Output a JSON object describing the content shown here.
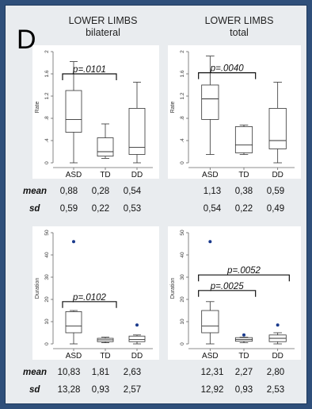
{
  "panel_letter": "D",
  "columns": [
    {
      "title1": "LOWER LIMBS",
      "title2": "bilateral"
    },
    {
      "title1": "LOWER LIMBS",
      "title2": "total"
    }
  ],
  "stat_labels": {
    "mean": "mean",
    "sd": "sd"
  },
  "stats": {
    "bilateral_rate": {
      "mean": [
        "0,88",
        "0,28",
        "0,54"
      ],
      "sd": [
        "0,59",
        "0,22",
        "0,53"
      ]
    },
    "total_rate": {
      "mean": [
        "1,13",
        "0,38",
        "0,59"
      ],
      "sd": [
        "0,54",
        "0,22",
        "0,49"
      ]
    },
    "bilateral_duration": {
      "mean": [
        "10,83",
        "1,81",
        "2,63"
      ],
      "sd": [
        "13,28",
        "0,93",
        "2,57"
      ]
    },
    "total_duration": {
      "mean": [
        "12,31",
        "2,27",
        "2,80"
      ],
      "sd": [
        "12,92",
        "0,93",
        "2,53"
      ]
    }
  },
  "chart_data": [
    {
      "type": "box",
      "id": "bilateral_rate",
      "ylabel": "Rate",
      "ylim": [
        0,
        2
      ],
      "yticks": [
        "0",
        ".4",
        ".8",
        "1.2",
        "1.6",
        "2"
      ],
      "categories": [
        "ASD",
        "TD",
        "DD"
      ],
      "boxes": [
        {
          "min": 0.0,
          "q1": 0.55,
          "median": 0.78,
          "q3": 1.3,
          "max": 1.82
        },
        {
          "min": 0.08,
          "q1": 0.12,
          "median": 0.2,
          "q3": 0.45,
          "max": 0.7
        },
        {
          "min": 0.0,
          "q1": 0.15,
          "median": 0.28,
          "q3": 0.98,
          "max": 1.45
        }
      ],
      "outliers": [],
      "annotations": [
        {
          "text": "p=.0101",
          "from": "ASD",
          "to": "TD",
          "y": 1.6
        }
      ]
    },
    {
      "type": "box",
      "id": "total_rate",
      "ylabel": "Rate",
      "ylim": [
        0,
        2
      ],
      "yticks": [
        "0",
        ".4",
        ".8",
        "1.2",
        "1.6",
        "2"
      ],
      "categories": [
        "ASD",
        "TD",
        "DD"
      ],
      "boxes": [
        {
          "min": 0.15,
          "q1": 0.78,
          "median": 1.15,
          "q3": 1.4,
          "max": 1.92
        },
        {
          "min": 0.15,
          "q1": 0.18,
          "median": 0.32,
          "q3": 0.65,
          "max": 0.68
        },
        {
          "min": 0.0,
          "q1": 0.25,
          "median": 0.4,
          "q3": 0.98,
          "max": 1.45
        }
      ],
      "outliers": [],
      "annotations": [
        {
          "text": "p=.0040",
          "from": "ASD",
          "to": "TD",
          "y": 1.62
        }
      ]
    },
    {
      "type": "box",
      "id": "bilateral_duration",
      "ylabel": "Duration",
      "ylim": [
        0,
        50
      ],
      "yticks": [
        "0",
        "10",
        "20",
        "30",
        "40",
        "50"
      ],
      "categories": [
        "ASD",
        "TD",
        "DD"
      ],
      "boxes": [
        {
          "min": 0.0,
          "q1": 5.0,
          "median": 8.0,
          "q3": 14.5,
          "max": 15.0
        },
        {
          "min": 0.5,
          "q1": 1.0,
          "median": 1.8,
          "q3": 2.5,
          "max": 3.0
        },
        {
          "min": 0.0,
          "q1": 1.0,
          "median": 2.0,
          "q3": 3.5,
          "max": 4.0
        }
      ],
      "outliers": [
        {
          "category": "ASD",
          "value": 46
        },
        {
          "category": "DD",
          "value": 8.5
        }
      ],
      "annotations": [
        {
          "text": "p=.0102",
          "from": "ASD",
          "to": "TD",
          "y": 19
        }
      ]
    },
    {
      "type": "box",
      "id": "total_duration",
      "ylabel": "Duration",
      "ylim": [
        0,
        50
      ],
      "yticks": [
        "0",
        "10",
        "20",
        "30",
        "40",
        "50"
      ],
      "categories": [
        "ASD",
        "TD",
        "DD"
      ],
      "boxes": [
        {
          "min": 0.0,
          "q1": 5.0,
          "median": 8.0,
          "q3": 15.0,
          "max": 19.0
        },
        {
          "min": 0.5,
          "q1": 1.2,
          "median": 2.0,
          "q3": 2.8,
          "max": 3.0
        },
        {
          "min": 0.0,
          "q1": 1.0,
          "median": 2.5,
          "q3": 4.0,
          "max": 5.0
        }
      ],
      "outliers": [
        {
          "category": "ASD",
          "value": 46
        },
        {
          "category": "TD",
          "value": 4
        },
        {
          "category": "DD",
          "value": 8.5
        }
      ],
      "annotations": [
        {
          "text": "p=.0052",
          "from": "ASD",
          "to": "DD",
          "y": 31
        },
        {
          "text": "p=.0025",
          "from": "ASD",
          "to": "TD",
          "y": 24
        }
      ]
    }
  ]
}
